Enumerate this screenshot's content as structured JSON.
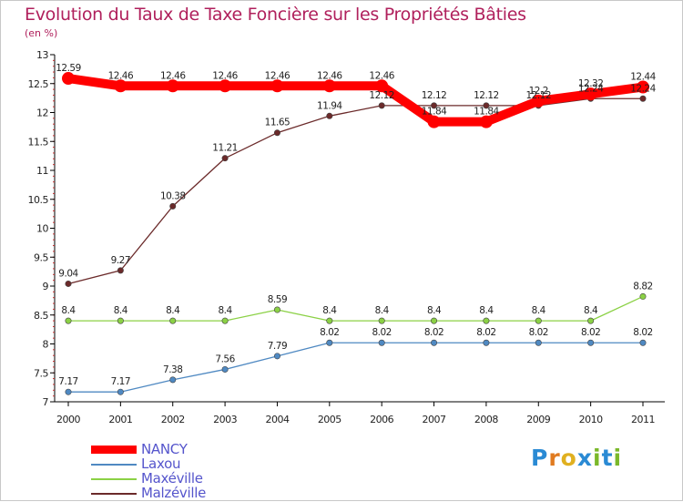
{
  "title": "Evolution du Taux de Taxe Foncière sur les Propriétés Bâties",
  "unit_label": "(en %)",
  "chart_data": {
    "type": "line",
    "title": "Evolution du Taux de Taxe Foncière sur les Propriétés Bâties",
    "ylabel": "(en %)",
    "xlabel": "",
    "x": [
      "2000",
      "2001",
      "2002",
      "2003",
      "2004",
      "2005",
      "2006",
      "2007",
      "2008",
      "2009",
      "2010",
      "2011"
    ],
    "ylim": [
      7,
      13
    ],
    "yticks": [
      "7",
      "7.5",
      "8",
      "8.5",
      "9",
      "9.5",
      "10",
      "10.5",
      "11",
      "11.5",
      "12",
      "12.5",
      "13"
    ],
    "grid": false,
    "legend_position": "bottom-left",
    "series": [
      {
        "name": "NANCY",
        "color": "#ff0000",
        "values": [
          12.59,
          12.46,
          12.46,
          12.46,
          12.46,
          12.46,
          12.46,
          11.84,
          11.84,
          12.2,
          12.32,
          12.44
        ],
        "labels": [
          "12.59",
          "12.46",
          "12.46",
          "12.46",
          "12.46",
          "12.46",
          "12.46",
          "11.84",
          "11.84",
          "12.2",
          "12.32",
          "12.44"
        ]
      },
      {
        "name": "Laxou",
        "color": "#4f89c2",
        "values": [
          7.17,
          7.17,
          7.38,
          7.56,
          7.79,
          8.02,
          8.02,
          8.02,
          8.02,
          8.02,
          8.02,
          8.02
        ],
        "labels": [
          "7.17",
          "7.17",
          "7.38",
          "7.56",
          "7.79",
          "8.02",
          "8.02",
          "8.02",
          "8.02",
          "8.02",
          "8.02",
          "8.02"
        ]
      },
      {
        "name": "Maxéville",
        "color": "#8bd145",
        "values": [
          8.4,
          8.4,
          8.4,
          8.4,
          8.59,
          8.4,
          8.4,
          8.4,
          8.4,
          8.4,
          8.4,
          8.82
        ],
        "labels": [
          "8.4",
          "8.4",
          "8.4",
          "8.4",
          "8.59",
          "8.4",
          "8.4",
          "8.4",
          "8.4",
          "8.4",
          "8.4",
          "8.82"
        ]
      },
      {
        "name": "Malzéville",
        "color": "#6b2a2a",
        "values": [
          9.04,
          9.27,
          10.38,
          11.21,
          11.65,
          11.94,
          12.12,
          12.12,
          12.12,
          12.12,
          12.24,
          12.24
        ],
        "labels": [
          "9.04",
          "9.27",
          "10.38",
          "11.21",
          "11.65",
          "11.94",
          "12.12",
          "12.12",
          "12.12",
          "12.12",
          "12.24",
          "12.24"
        ]
      }
    ]
  },
  "legend": [
    {
      "label": "NANCY",
      "color": "#ff0000"
    },
    {
      "label": "Laxou",
      "color": "#4f89c2"
    },
    {
      "label": "Maxéville",
      "color": "#8bd145"
    },
    {
      "label": "Malzéville",
      "color": "#6b2a2a"
    }
  ],
  "logo": {
    "letters": [
      "P",
      "r",
      "o",
      "x",
      "i",
      "t",
      "i"
    ],
    "colors": [
      "#2a8ad4",
      "#e07b20",
      "#e0b020",
      "#2a8ad4",
      "#7ab82a",
      "#2a8ad4",
      "#7ab82a"
    ]
  }
}
